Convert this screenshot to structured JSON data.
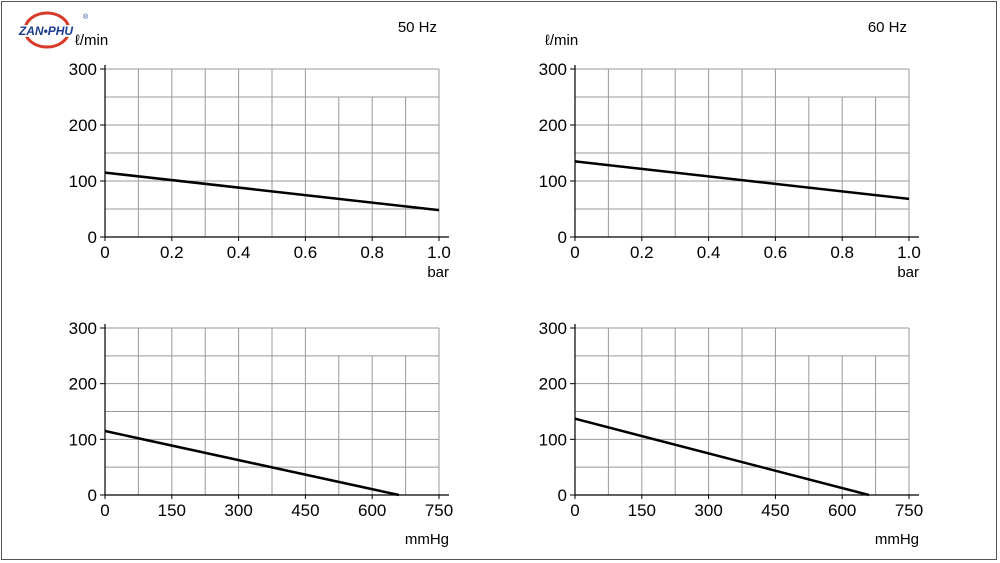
{
  "logo": {
    "text": "ZAN•PHU",
    "mark": "®",
    "colors": {
      "ring": "#d83a2a",
      "text": "#1b3d8f"
    }
  },
  "colors": {
    "grid": "#999999",
    "axis": "#000000",
    "line": "#000000"
  },
  "chart_data": [
    {
      "type": "line",
      "frequency": "50 Hz",
      "ylabel": "ℓ/min",
      "xlabel": "bar",
      "xlim": [
        0,
        1.0
      ],
      "ylim": [
        0,
        300
      ],
      "xticks": [
        "0",
        "0.2",
        "0.4",
        "0.6",
        "0.8",
        "1.0"
      ],
      "yticks": [
        "0",
        "100",
        "200",
        "300"
      ],
      "grid": true,
      "series": [
        {
          "x": [
            0,
            1.0
          ],
          "y": [
            115,
            48
          ]
        }
      ]
    },
    {
      "type": "line",
      "frequency": "60 Hz",
      "ylabel": "ℓ/min",
      "xlabel": "bar",
      "xlim": [
        0,
        1.0
      ],
      "ylim": [
        0,
        300
      ],
      "xticks": [
        "0",
        "0.2",
        "0.4",
        "0.6",
        "0.8",
        "1.0"
      ],
      "yticks": [
        "0",
        "100",
        "200",
        "300"
      ],
      "grid": true,
      "series": [
        {
          "x": [
            0,
            1.0
          ],
          "y": [
            135,
            68
          ]
        }
      ]
    },
    {
      "type": "line",
      "ylabel": "",
      "xlabel": "mmHg",
      "xlim": [
        0,
        750
      ],
      "ylim": [
        0,
        300
      ],
      "xticks": [
        "0",
        "150",
        "300",
        "450",
        "600",
        "750"
      ],
      "yticks": [
        "0",
        "100",
        "200",
        "300"
      ],
      "grid": true,
      "series": [
        {
          "x": [
            0,
            660
          ],
          "y": [
            115,
            0
          ]
        }
      ]
    },
    {
      "type": "line",
      "ylabel": "",
      "xlabel": "mmHg",
      "xlim": [
        0,
        750
      ],
      "ylim": [
        0,
        300
      ],
      "xticks": [
        "0",
        "150",
        "300",
        "450",
        "600",
        "750"
      ],
      "yticks": [
        "0",
        "100",
        "200",
        "300"
      ],
      "grid": true,
      "series": [
        {
          "x": [
            0,
            660
          ],
          "y": [
            137,
            0
          ]
        }
      ]
    }
  ]
}
